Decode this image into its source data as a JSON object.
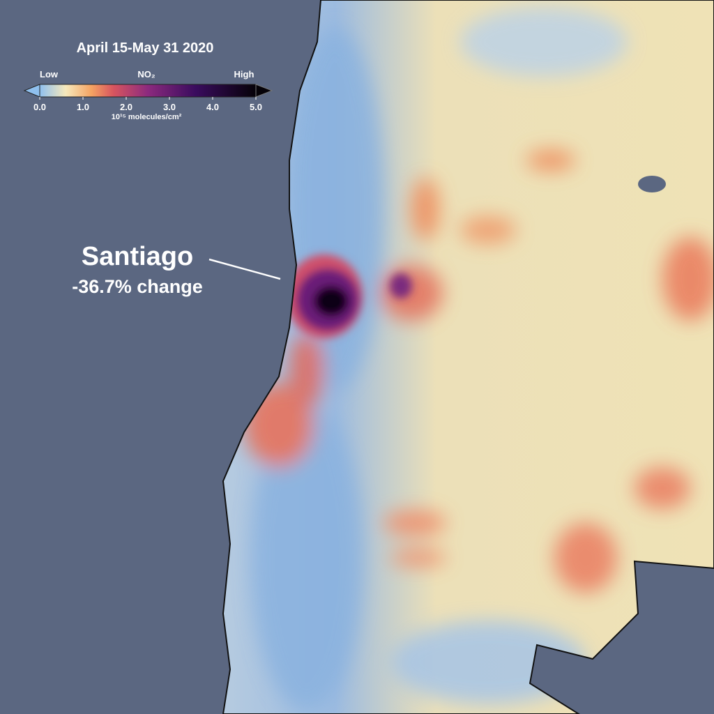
{
  "title": "April 15-May 31 2020",
  "legend": {
    "low": "Low",
    "variable": "NO₂",
    "high": "High",
    "unit": "10¹⁵ molecules/cm²",
    "ticks": [
      {
        "value": 0,
        "label": "0.0"
      },
      {
        "value": 1,
        "label": "1.0"
      },
      {
        "value": 2,
        "label": "2.0"
      },
      {
        "value": 3,
        "label": "3.0"
      },
      {
        "value": 4,
        "label": "4.0"
      },
      {
        "value": 5,
        "label": "5.0"
      }
    ]
  },
  "annotation": {
    "city": "Santiago",
    "change": "-36.7% change"
  }
}
